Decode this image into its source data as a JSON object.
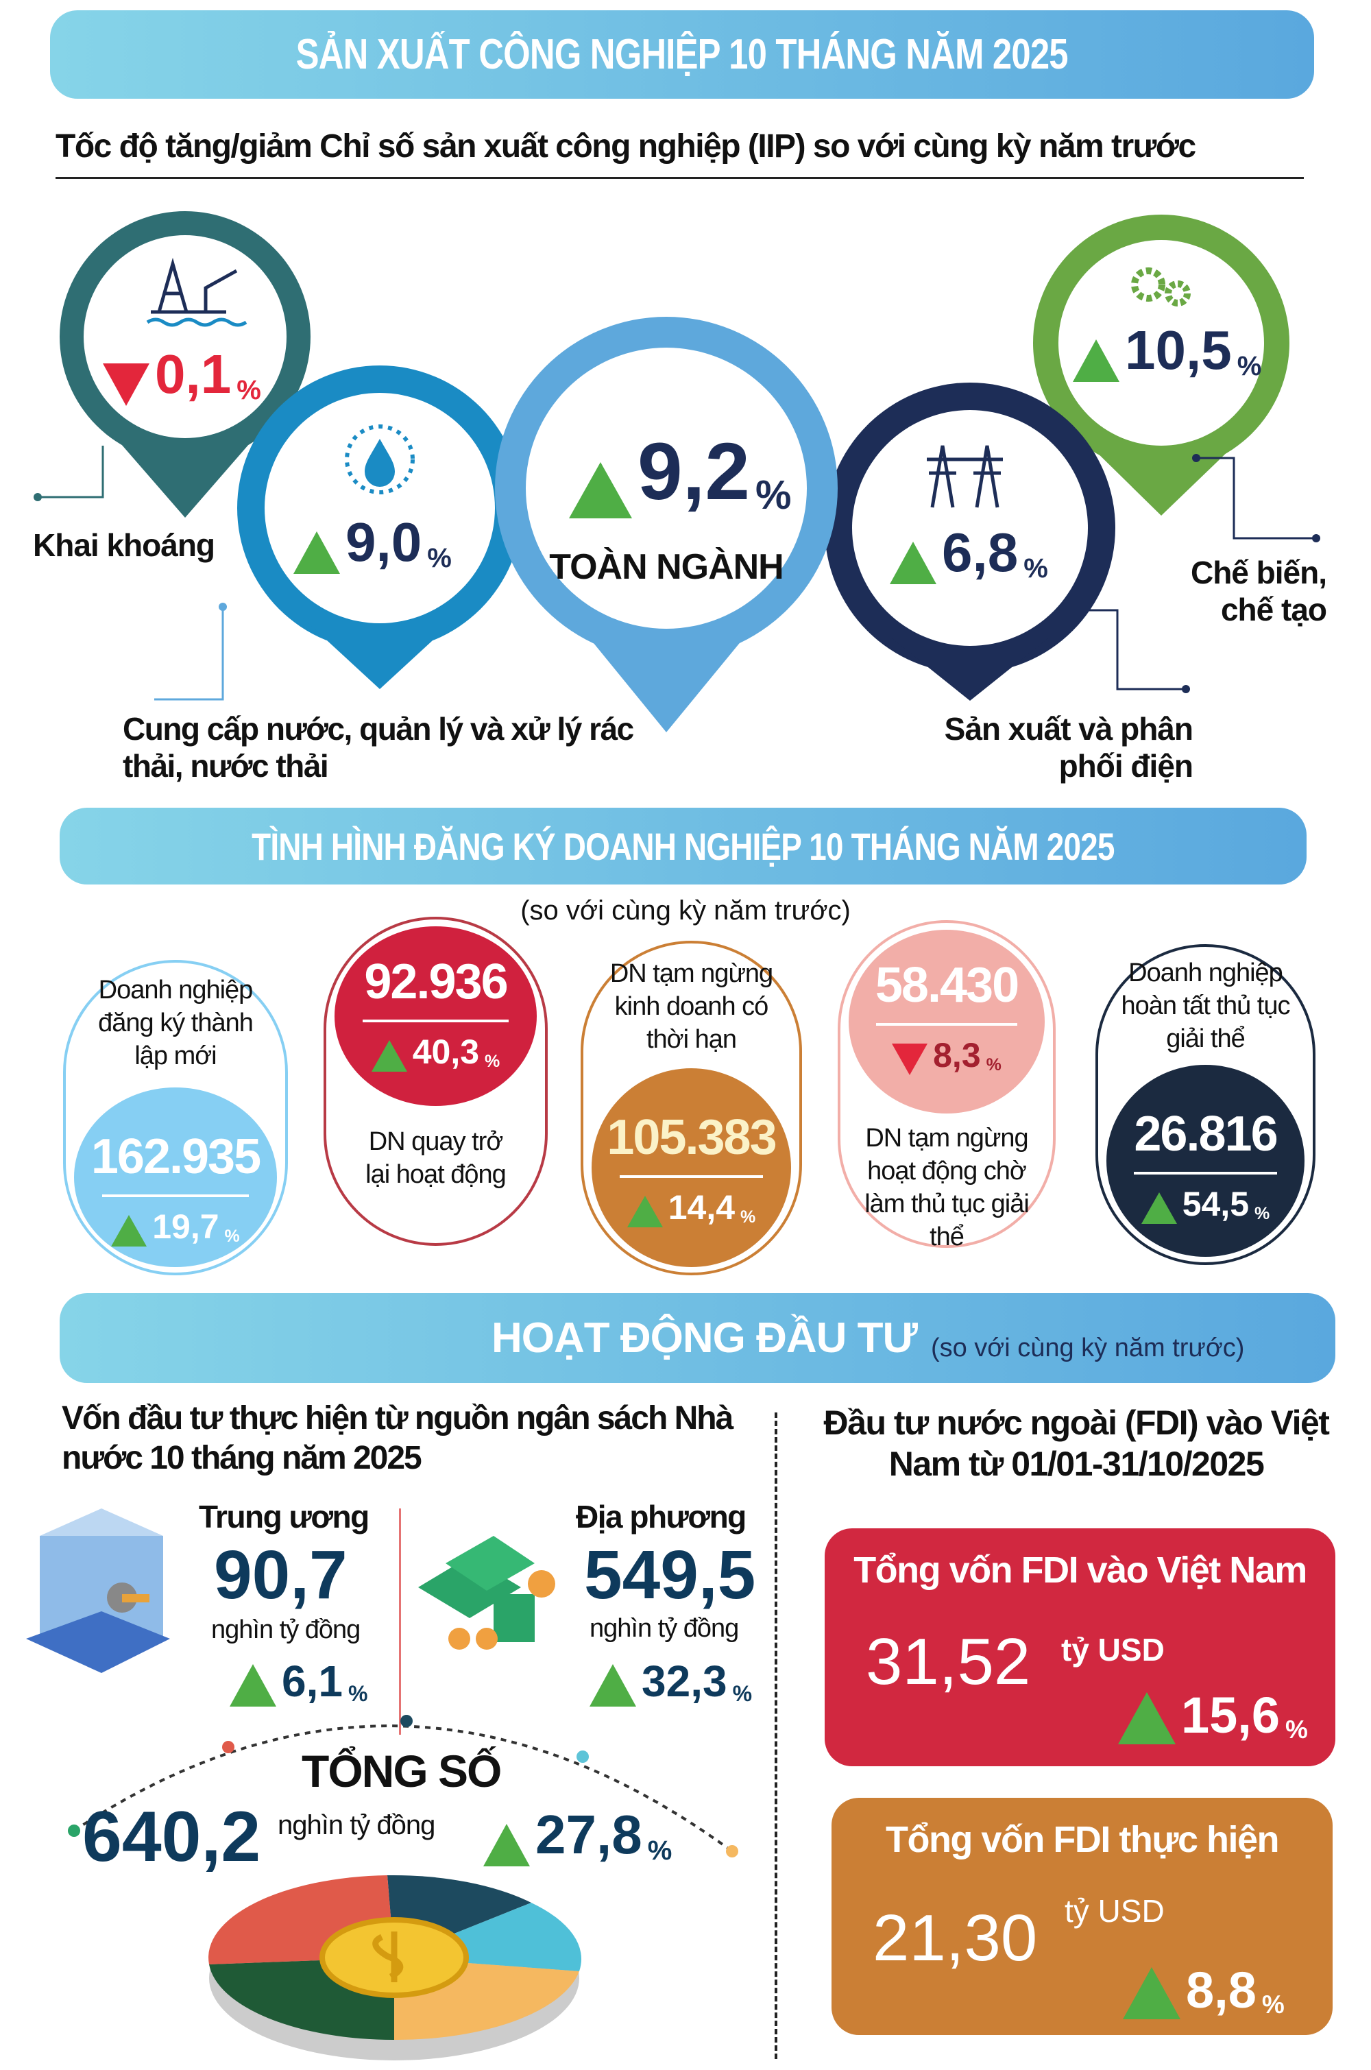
{
  "title": "SẢN XUẤT CÔNG NGHIỆP 10 THÁNG NĂM 2025",
  "iip": {
    "subtitle": "Tốc độ tăng/giảm Chỉ số sản xuất công nghiệp (IIP) so với cùng kỳ năm trước",
    "sectors": [
      {
        "label": "Khai khoáng",
        "value": "0,1",
        "unit": "%",
        "direction": "down",
        "color": "#2f6e73",
        "icon": "oil-rig-icon"
      },
      {
        "label": "Cung cấp nước, quản lý và xử lý rác thải, nước thải",
        "value": "9,0",
        "unit": "%",
        "direction": "up",
        "color": "#1a8bc4",
        "icon": "water-drop-icon"
      },
      {
        "label": "TOÀN NGÀNH",
        "value": "9,2",
        "unit": "%",
        "direction": "up",
        "color": "#5ea8dc"
      },
      {
        "label": "Sản xuất và phân phối điện",
        "value": "6,8",
        "unit": "%",
        "direction": "up",
        "color": "#1d2d57",
        "icon": "power-tower-icon"
      },
      {
        "label": "Chế biến, chế tạo",
        "value": "10,5",
        "unit": "%",
        "direction": "up",
        "color": "#6aa844",
        "icon": "gears-icon"
      }
    ]
  },
  "business": {
    "title": "TÌNH HÌNH ĐĂNG KÝ DOANH NGHIỆP 10 THÁNG  NĂM 2025",
    "note": "(so với cùng kỳ năm trước)",
    "items": [
      {
        "label": "Doanh nghiệp đăng ký thành lập mới",
        "value": "162.935",
        "change": "19,7",
        "direction": "up",
        "color": "#86cff3"
      },
      {
        "label": "DN quay trở lại hoạt động",
        "value": "92.936",
        "change": "40,3",
        "direction": "up",
        "color": "#d0213e"
      },
      {
        "label": "DN tạm ngừng kinh doanh có thời hạn",
        "value": "105.383",
        "change": "14,4",
        "direction": "up",
        "color": "#cb7f35"
      },
      {
        "label": "DN tạm ngừng hoạt động chờ làm thủ tục giải thể",
        "value": "58.430",
        "change": "8,3",
        "direction": "down",
        "color": "#f2aea8"
      },
      {
        "label": "Doanh nghiệp hoàn tất thủ tục giải thể",
        "value": "26.816",
        "change": "54,5",
        "direction": "up",
        "color": "#1b2a40"
      }
    ]
  },
  "investment": {
    "title": "HOẠT ĐỘNG ĐẦU TƯ",
    "note": "(so với cùng kỳ năm trước)",
    "budget": {
      "heading": "Vốn đầu tư thực hiện từ nguồn ngân sách Nhà nước 10 tháng năm 2025",
      "central": {
        "label": "Trung ương",
        "value": "90,7",
        "unit": "nghìn tỷ đồng",
        "change": "6,1"
      },
      "local": {
        "label": "Địa phương",
        "value": "549,5",
        "unit": "nghìn tỷ đồng",
        "change": "32,3"
      },
      "total": {
        "label": "TỔNG SỐ",
        "value": "640,2",
        "unit": "nghìn tỷ đồng",
        "change": "27,8"
      }
    },
    "fdi": {
      "heading": "Đầu tư nước ngoài (FDI) vào Việt Nam từ 01/01-31/10/2025",
      "registered": {
        "label": "Tổng vốn FDI vào Việt Nam",
        "value": "31,52",
        "unit": "tỷ USD",
        "change": "15,6",
        "color": "#d12840"
      },
      "disbursed": {
        "label": "Tổng vốn FDI thực hiện",
        "value": "21,30",
        "unit": "tỷ USD",
        "change": "8,8",
        "color": "#cb7f35"
      }
    }
  },
  "pct": "%"
}
